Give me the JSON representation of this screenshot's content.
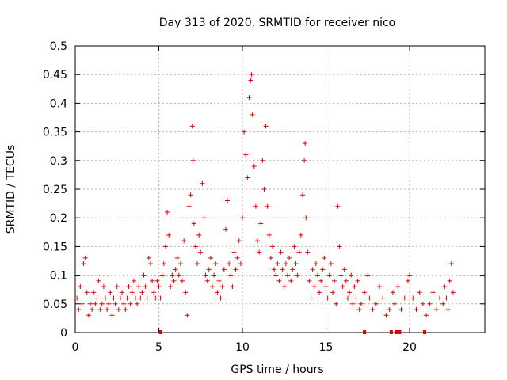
{
  "chart_data": {
    "type": "scatter",
    "title": "Day 313 of 2020, SRMTID for receiver nico",
    "xlabel": "GPS time / hours",
    "ylabel": "SRMTID / TECUs",
    "xlim": [
      0,
      24.5
    ],
    "ylim": [
      0,
      0.5
    ],
    "xticks": [
      0,
      5,
      10,
      15,
      20
    ],
    "yticks": [
      0,
      0.05,
      0.1,
      0.15,
      0.2,
      0.25,
      0.3,
      0.35,
      0.4,
      0.45,
      0.5
    ],
    "grid": true,
    "marker": "plus",
    "color": "#e00000",
    "series": [
      {
        "name": "SRMTID",
        "points": [
          [
            0.1,
            0.06
          ],
          [
            0.2,
            0.04
          ],
          [
            0.3,
            0.08
          ],
          [
            0.4,
            0.05
          ],
          [
            0.5,
            0.12
          ],
          [
            0.6,
            0.13
          ],
          [
            0.7,
            0.07
          ],
          [
            0.8,
            0.03
          ],
          [
            0.9,
            0.05
          ],
          [
            1.0,
            0.04
          ],
          [
            1.1,
            0.07
          ],
          [
            1.2,
            0.05
          ],
          [
            1.3,
            0.06
          ],
          [
            1.4,
            0.09
          ],
          [
            1.5,
            0.04
          ],
          [
            1.6,
            0.05
          ],
          [
            1.7,
            0.08
          ],
          [
            1.8,
            0.06
          ],
          [
            1.9,
            0.04
          ],
          [
            2.0,
            0.05
          ],
          [
            2.1,
            0.07
          ],
          [
            2.2,
            0.03
          ],
          [
            2.3,
            0.06
          ],
          [
            2.4,
            0.05
          ],
          [
            2.5,
            0.08
          ],
          [
            2.6,
            0.04
          ],
          [
            2.7,
            0.06
          ],
          [
            2.8,
            0.07
          ],
          [
            2.9,
            0.05
          ],
          [
            3.0,
            0.04
          ],
          [
            3.1,
            0.06
          ],
          [
            3.2,
            0.08
          ],
          [
            3.3,
            0.05
          ],
          [
            3.4,
            0.07
          ],
          [
            3.5,
            0.09
          ],
          [
            3.6,
            0.06
          ],
          [
            3.7,
            0.05
          ],
          [
            3.8,
            0.08
          ],
          [
            3.9,
            0.06
          ],
          [
            4.0,
            0.07
          ],
          [
            4.1,
            0.1
          ],
          [
            4.2,
            0.08
          ],
          [
            4.3,
            0.06
          ],
          [
            4.4,
            0.13
          ],
          [
            4.5,
            0.12
          ],
          [
            4.6,
            0.09
          ],
          [
            4.7,
            0.07
          ],
          [
            4.8,
            0.06
          ],
          [
            4.9,
            0.09
          ],
          [
            5.0,
            0.08
          ],
          [
            5.1,
            0.06
          ],
          [
            5.2,
            0.1
          ],
          [
            5.3,
            0.12
          ],
          [
            5.4,
            0.15
          ],
          [
            5.5,
            0.21
          ],
          [
            5.6,
            0.17
          ],
          [
            5.7,
            0.08
          ],
          [
            5.8,
            0.1
          ],
          [
            5.9,
            0.09
          ],
          [
            6.0,
            0.11
          ],
          [
            6.1,
            0.13
          ],
          [
            6.2,
            0.1
          ],
          [
            6.3,
            0.12
          ],
          [
            6.4,
            0.09
          ],
          [
            6.5,
            0.16
          ],
          [
            6.6,
            0.07
          ],
          [
            6.7,
            0.03
          ],
          [
            6.8,
            0.22
          ],
          [
            6.9,
            0.24
          ],
          [
            7.0,
            0.36
          ],
          [
            7.05,
            0.3
          ],
          [
            7.1,
            0.19
          ],
          [
            7.2,
            0.15
          ],
          [
            7.3,
            0.12
          ],
          [
            7.4,
            0.17
          ],
          [
            7.5,
            0.14
          ],
          [
            7.6,
            0.26
          ],
          [
            7.7,
            0.2
          ],
          [
            7.8,
            0.1
          ],
          [
            7.9,
            0.09
          ],
          [
            8.0,
            0.11
          ],
          [
            8.1,
            0.13
          ],
          [
            8.2,
            0.08
          ],
          [
            8.3,
            0.1
          ],
          [
            8.4,
            0.12
          ],
          [
            8.5,
            0.07
          ],
          [
            8.6,
            0.09
          ],
          [
            8.7,
            0.06
          ],
          [
            8.8,
            0.08
          ],
          [
            8.9,
            0.11
          ],
          [
            9.0,
            0.18
          ],
          [
            9.1,
            0.23
          ],
          [
            9.2,
            0.12
          ],
          [
            9.3,
            0.1
          ],
          [
            9.4,
            0.08
          ],
          [
            9.5,
            0.14
          ],
          [
            9.6,
            0.11
          ],
          [
            9.7,
            0.13
          ],
          [
            9.8,
            0.16
          ],
          [
            9.9,
            0.12
          ],
          [
            10.0,
            0.2
          ],
          [
            10.1,
            0.35
          ],
          [
            10.2,
            0.31
          ],
          [
            10.3,
            0.27
          ],
          [
            10.4,
            0.41
          ],
          [
            10.5,
            0.44
          ],
          [
            10.55,
            0.45
          ],
          [
            10.6,
            0.38
          ],
          [
            10.7,
            0.29
          ],
          [
            10.8,
            0.22
          ],
          [
            10.9,
            0.16
          ],
          [
            11.0,
            0.14
          ],
          [
            11.1,
            0.19
          ],
          [
            11.2,
            0.3
          ],
          [
            11.3,
            0.25
          ],
          [
            11.4,
            0.36
          ],
          [
            11.5,
            0.22
          ],
          [
            11.6,
            0.17
          ],
          [
            11.7,
            0.13
          ],
          [
            11.8,
            0.15
          ],
          [
            11.9,
            0.11
          ],
          [
            12.0,
            0.1
          ],
          [
            12.1,
            0.12
          ],
          [
            12.2,
            0.09
          ],
          [
            12.3,
            0.14
          ],
          [
            12.4,
            0.11
          ],
          [
            12.5,
            0.08
          ],
          [
            12.6,
            0.12
          ],
          [
            12.7,
            0.1
          ],
          [
            12.8,
            0.13
          ],
          [
            12.9,
            0.09
          ],
          [
            13.0,
            0.11
          ],
          [
            13.1,
            0.15
          ],
          [
            13.2,
            0.12
          ],
          [
            13.3,
            0.1
          ],
          [
            13.4,
            0.14
          ],
          [
            13.5,
            0.17
          ],
          [
            13.6,
            0.24
          ],
          [
            13.7,
            0.3
          ],
          [
            13.75,
            0.33
          ],
          [
            13.8,
            0.2
          ],
          [
            13.9,
            0.14
          ],
          [
            14.0,
            0.09
          ],
          [
            14.1,
            0.06
          ],
          [
            14.2,
            0.11
          ],
          [
            14.3,
            0.08
          ],
          [
            14.4,
            0.12
          ],
          [
            14.5,
            0.1
          ],
          [
            14.6,
            0.07
          ],
          [
            14.7,
            0.09
          ],
          [
            14.8,
            0.11
          ],
          [
            14.9,
            0.13
          ],
          [
            15.0,
            0.08
          ],
          [
            15.1,
            0.06
          ],
          [
            15.2,
            0.1
          ],
          [
            15.3,
            0.12
          ],
          [
            15.4,
            0.07
          ],
          [
            15.5,
            0.09
          ],
          [
            15.6,
            0.05
          ],
          [
            15.7,
            0.22
          ],
          [
            15.8,
            0.15
          ],
          [
            15.9,
            0.1
          ],
          [
            16.0,
            0.08
          ],
          [
            16.1,
            0.11
          ],
          [
            16.2,
            0.09
          ],
          [
            16.3,
            0.06
          ],
          [
            16.4,
            0.07
          ],
          [
            16.5,
            0.1
          ],
          [
            16.6,
            0.05
          ],
          [
            16.7,
            0.08
          ],
          [
            16.8,
            0.06
          ],
          [
            16.9,
            0.09
          ],
          [
            17.0,
            0.04
          ],
          [
            17.1,
            0.05
          ],
          [
            17.3,
            0.07
          ],
          [
            17.5,
            0.1
          ],
          [
            17.6,
            0.06
          ],
          [
            17.8,
            0.04
          ],
          [
            18.0,
            0.05
          ],
          [
            18.2,
            0.08
          ],
          [
            18.4,
            0.06
          ],
          [
            18.6,
            0.03
          ],
          [
            18.8,
            0.04
          ],
          [
            19.0,
            0.07
          ],
          [
            19.1,
            0.05
          ],
          [
            19.3,
            0.08
          ],
          [
            19.5,
            0.04
          ],
          [
            19.7,
            0.06
          ],
          [
            19.9,
            0.09
          ],
          [
            20.0,
            0.1
          ],
          [
            20.2,
            0.06
          ],
          [
            20.4,
            0.04
          ],
          [
            20.6,
            0.07
          ],
          [
            20.8,
            0.05
          ],
          [
            21.0,
            0.03
          ],
          [
            21.2,
            0.05
          ],
          [
            21.4,
            0.07
          ],
          [
            21.6,
            0.04
          ],
          [
            21.8,
            0.06
          ],
          [
            22.0,
            0.05
          ],
          [
            22.1,
            0.08
          ],
          [
            22.2,
            0.06
          ],
          [
            22.3,
            0.04
          ],
          [
            22.4,
            0.09
          ],
          [
            22.5,
            0.12
          ],
          [
            22.6,
            0.07
          ]
        ]
      }
    ],
    "baseline_marks": [
      5.1,
      17.3,
      18.9,
      19.2,
      19.4,
      20.9
    ]
  }
}
